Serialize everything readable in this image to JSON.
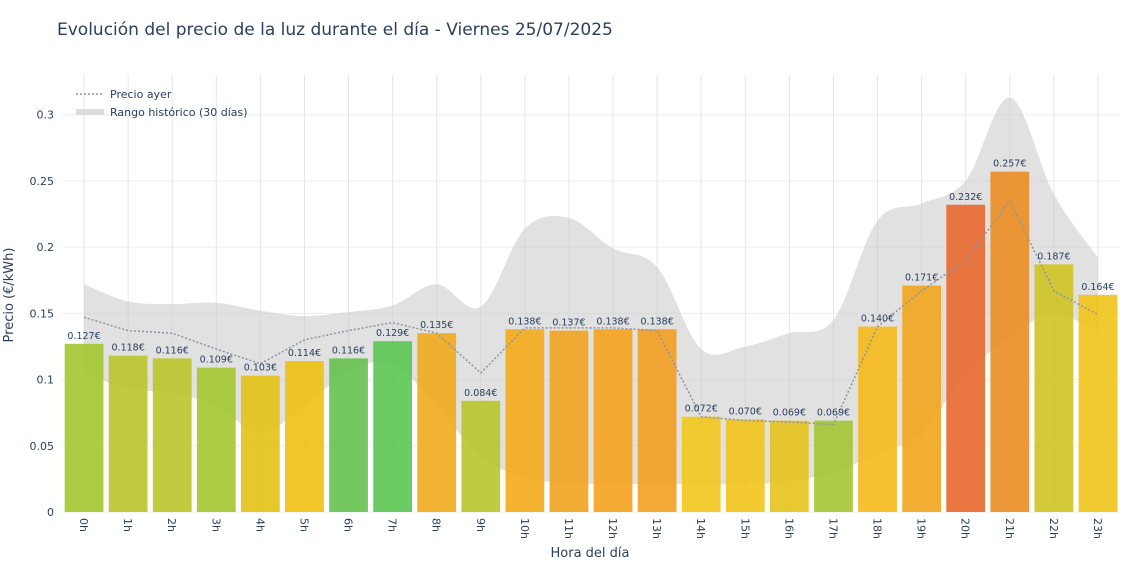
{
  "chart_data": {
    "type": "bar",
    "title": "Evolución del precio de la luz durante el día - Viernes 25/07/2025",
    "xlabel": "Hora del día",
    "ylabel": "Precio (€/kWh)",
    "ylim": [
      0,
      0.33
    ],
    "yticks": [
      0,
      0.05,
      0.1,
      0.15,
      0.2,
      0.25,
      0.3
    ],
    "ytick_labels": [
      "0",
      "0.05",
      "0.1",
      "0.15",
      "0.2",
      "0.25",
      "0.3"
    ],
    "grid": true,
    "legend_position": "top-left",
    "categories": [
      "0h",
      "1h",
      "2h",
      "3h",
      "4h",
      "5h",
      "6h",
      "7h",
      "8h",
      "9h",
      "10h",
      "11h",
      "12h",
      "13h",
      "14h",
      "15h",
      "16h",
      "17h",
      "18h",
      "19h",
      "20h",
      "21h",
      "22h",
      "23h"
    ],
    "values": [
      0.127,
      0.118,
      0.116,
      0.109,
      0.103,
      0.114,
      0.116,
      0.129,
      0.135,
      0.084,
      0.138,
      0.137,
      0.138,
      0.138,
      0.072,
      0.07,
      0.069,
      0.069,
      0.14,
      0.171,
      0.232,
      0.257,
      0.187,
      0.164
    ],
    "data_labels": [
      "0.127€",
      "0.118€",
      "0.116€",
      "0.109€",
      "0.103€",
      "0.114€",
      "0.116€",
      "0.129€",
      "0.135€",
      "0.084€",
      "0.138€",
      "0.137€",
      "0.138€",
      "0.138€",
      "0.072€",
      "0.070€",
      "0.069€",
      "0.069€",
      "0.140€",
      "0.171€",
      "0.232€",
      "0.257€",
      "0.187€",
      "0.164€"
    ],
    "bar_colors": [
      "#a3c72f",
      "#bac52b",
      "#bac52b",
      "#a3c72f",
      "#e3c115",
      "#f0c012",
      "#66c14f",
      "#5cc653",
      "#f1aa1c",
      "#b8c62e",
      "#f4ab1b",
      "#f0a41f",
      "#f4a21e",
      "#f39f22",
      "#f1c61c",
      "#f2c41b",
      "#e6c31e",
      "#a4c535",
      "#f5b91a",
      "#f2a61d",
      "#e8682c",
      "#ec8e23",
      "#cec324",
      "#f0c41a"
    ],
    "series": [
      {
        "name": "Precio ayer",
        "color": "#8a96a2",
        "style": "dotted",
        "values": [
          0.147,
          0.137,
          0.135,
          0.123,
          0.112,
          0.13,
          0.137,
          0.143,
          0.135,
          0.105,
          0.139,
          0.139,
          0.139,
          0.137,
          0.072,
          0.069,
          0.068,
          0.066,
          0.14,
          0.167,
          0.19,
          0.235,
          0.167,
          0.149
        ]
      },
      {
        "name": "Rango histórico (30 días)",
        "color": "#c8c8c8",
        "type": "band",
        "upper": [
          0.172,
          0.159,
          0.157,
          0.158,
          0.152,
          0.148,
          0.151,
          0.156,
          0.172,
          0.155,
          0.214,
          0.222,
          0.199,
          0.185,
          0.123,
          0.125,
          0.135,
          0.145,
          0.22,
          0.233,
          0.25,
          0.313,
          0.24,
          0.192
        ],
        "lower": [
          0.105,
          0.093,
          0.09,
          0.08,
          0.06,
          0.08,
          0.106,
          0.112,
          0.08,
          0.042,
          0.026,
          0.022,
          0.021,
          0.021,
          0.021,
          0.021,
          0.023,
          0.03,
          0.044,
          0.06,
          0.104,
          0.132,
          0.15,
          0.135
        ]
      }
    ]
  }
}
